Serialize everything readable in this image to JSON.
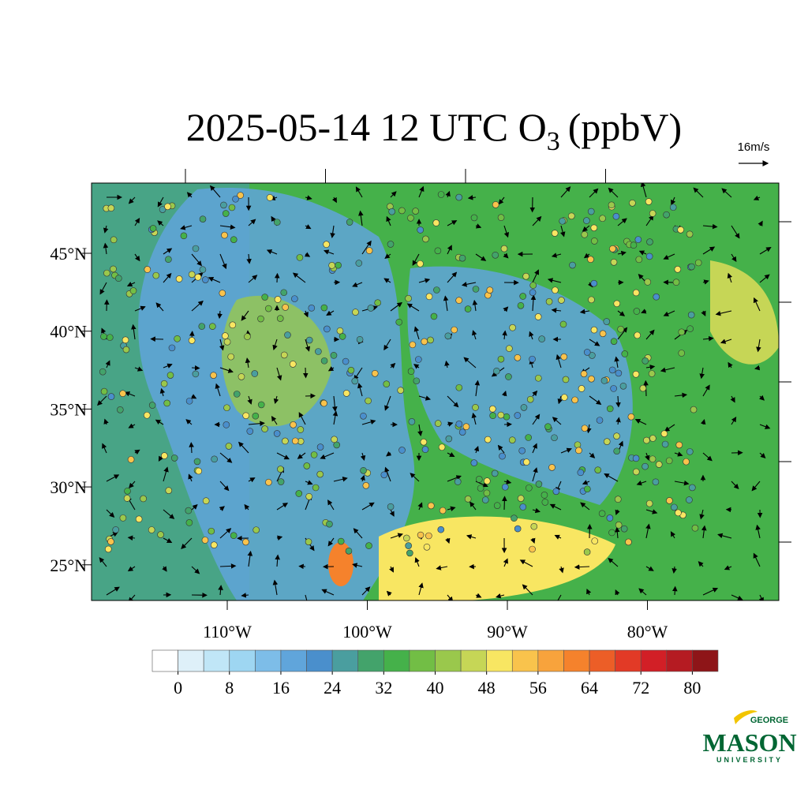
{
  "title": {
    "main": "2025-05-14 12 UTC O",
    "subscript": "3",
    "unit": "(ppbV)"
  },
  "vector_reference": "16m/s",
  "latitude_labels": [
    "45°N",
    "40°N",
    "35°N",
    "30°N",
    "25°N"
  ],
  "longitude_labels": [
    "110°W",
    "100°W",
    "90°W",
    "80°W"
  ],
  "colorbar": {
    "colors": [
      "#ffffff",
      "#def0f9",
      "#c0e6f7",
      "#9ed6f2",
      "#7dbde8",
      "#60a5db",
      "#4a8fcc",
      "#4a9e9f",
      "#43a36b",
      "#45b14a",
      "#72be45",
      "#9ac84c",
      "#c6d656",
      "#f8e662",
      "#f9c34c",
      "#f8a33c",
      "#f5822c",
      "#ec5e27",
      "#e23a26",
      "#d21f26",
      "#b51b22",
      "#8e1518"
    ],
    "ticks": [
      0,
      8,
      16,
      24,
      32,
      40,
      48,
      56,
      64,
      72,
      80
    ]
  },
  "logo": {
    "top": "GEORGE",
    "name": "MASON",
    "bottom": "UNIVERSITY"
  }
}
